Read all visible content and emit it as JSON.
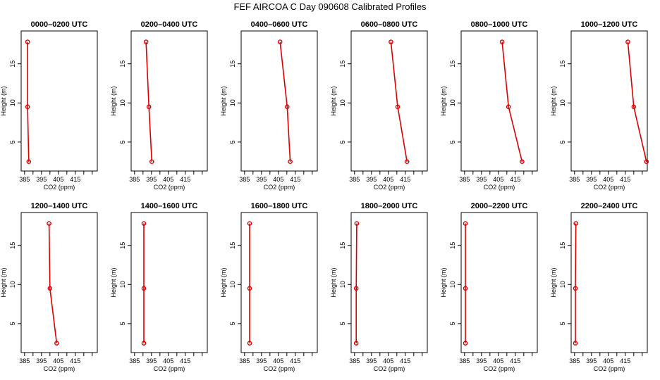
{
  "figure": {
    "title": "FEF AIRCOA C  Day 090608  Calibrated Profiles"
  },
  "colors": {
    "series": "#dd0000",
    "axis": "#000000",
    "background": "#ffffff"
  },
  "chart_data": {
    "type": "line",
    "title": "FEF AIRCOA C  Day 090608  Calibrated Profiles",
    "xlabel": "CO2 (ppm)",
    "ylabel": "Height (m)",
    "xlim": [
      383,
      428
    ],
    "ylim": [
      1.3,
      19.2
    ],
    "xticks": [
      385,
      395,
      405,
      415
    ],
    "xticks_minor": [
      390,
      400,
      410,
      420,
      425
    ],
    "yticks": [
      5,
      10,
      15
    ],
    "heights": [
      2.5,
      9.5,
      17.8
    ],
    "panels": [
      {
        "title": "0000–0200 UTC",
        "co2": [
          387.5,
          386.8,
          386.8
        ]
      },
      {
        "title": "0200–0400 UTC",
        "co2": [
          395.2,
          393.5,
          391.8
        ]
      },
      {
        "title": "0400–0600 UTC",
        "co2": [
          412.0,
          410.2,
          406.0
        ]
      },
      {
        "title": "0600–0800 UTC",
        "co2": [
          416.0,
          410.5,
          406.5
        ]
      },
      {
        "title": "0800–1000 UTC",
        "co2": [
          419.0,
          411.0,
          407.2
        ]
      },
      {
        "title": "1000–1200 UTC",
        "co2": [
          427.5,
          420.0,
          416.5
        ]
      },
      {
        "title": "1200–1400 UTC",
        "co2": [
          404.0,
          400.0,
          399.5
        ]
      },
      {
        "title": "1400–1600 UTC",
        "co2": [
          390.5,
          390.5,
          390.5
        ]
      },
      {
        "title": "1600–1800 UTC",
        "co2": [
          388.0,
          388.0,
          388.0
        ]
      },
      {
        "title": "1800–2000 UTC",
        "co2": [
          386.0,
          386.0,
          386.3
        ]
      },
      {
        "title": "2000–2200 UTC",
        "co2": [
          385.5,
          385.5,
          385.5
        ]
      },
      {
        "title": "2200–2400 UTC",
        "co2": [
          385.5,
          385.5,
          385.8
        ]
      }
    ]
  }
}
